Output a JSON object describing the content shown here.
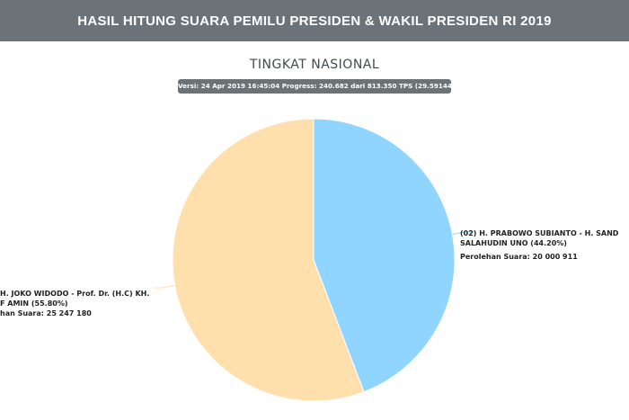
{
  "header": {
    "title": "HASIL HITUNG SUARA PEMILU PRESIDEN & WAKIL PRESIDEN RI 2019"
  },
  "chart_data": {
    "type": "pie",
    "title": "TINGKAT NASIONAL",
    "version_text": "Versi: 24 Apr 2019 16:45:04 Progress: 240.682 dari 813.350 TPS (29.59144%)",
    "slices": [
      {
        "label_line1": "(02) H. PRABOWO SUBIANTO - H. SAND",
        "label_line2": "SALAHUDIN UNO (44.20%)",
        "vote_text": "Perolehan Suara: 20 000 911",
        "percent": 44.2,
        "votes": 20000911,
        "color": "#90d5ff"
      },
      {
        "label_line1": "H. JOKO WIDODO - Prof. Dr. (H.C) KH.",
        "label_line2": "F AMIN (55.80%)",
        "vote_text": "han Suara: 25 247 180",
        "percent": 55.8,
        "votes": 25247180,
        "color": "#ffe0ad"
      }
    ]
  }
}
